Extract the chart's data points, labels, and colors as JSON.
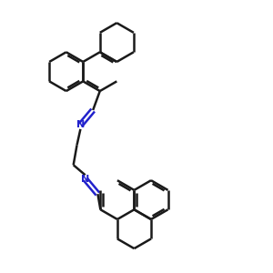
{
  "bond_color": "#1a1a1a",
  "nitrogen_color": "#2222cc",
  "background_color": "#ffffff",
  "bond_width": 1.8,
  "dpi": 100,
  "figsize": [
    3.0,
    3.0
  ]
}
